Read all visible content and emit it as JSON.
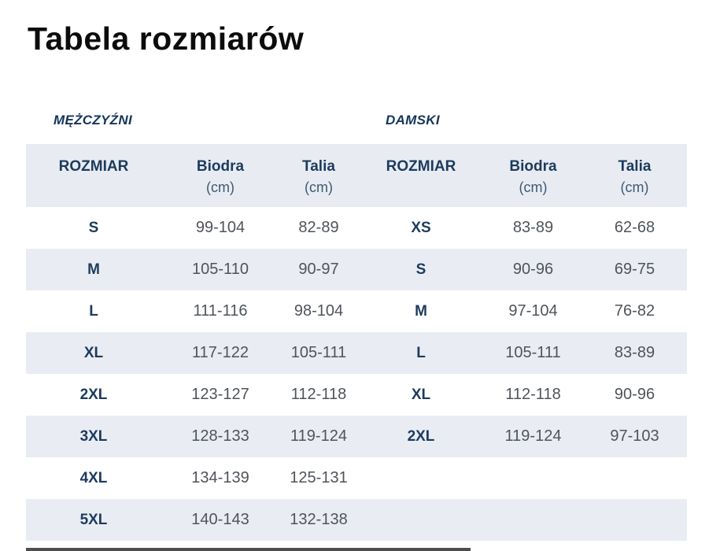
{
  "title": "Tabela rozmiarów",
  "men": {
    "section_label": "MĘŻCZYŹNI",
    "headers": {
      "size": "ROZMIAR",
      "hips": "Biodra",
      "waist": "Talia",
      "unit": "(cm)"
    },
    "rows": [
      {
        "size": "S",
        "hips": "99-104",
        "waist": "82-89"
      },
      {
        "size": "M",
        "hips": "105-110",
        "waist": "90-97"
      },
      {
        "size": "L",
        "hips": "111-116",
        "waist": "98-104"
      },
      {
        "size": "XL",
        "hips": "117-122",
        "waist": "105-111"
      },
      {
        "size": "2XL",
        "hips": "123-127",
        "waist": "112-118"
      },
      {
        "size": "3XL",
        "hips": "128-133",
        "waist": "119-124"
      },
      {
        "size": "4XL",
        "hips": "134-139",
        "waist": "125-131"
      },
      {
        "size": "5XL",
        "hips": "140-143",
        "waist": "132-138"
      }
    ]
  },
  "women": {
    "section_label": "DAMSKI",
    "headers": {
      "size": "ROZMIAR",
      "hips": "Biodra",
      "waist": "Talia",
      "unit": "(cm)"
    },
    "rows": [
      {
        "size": "XS",
        "hips": "83-89",
        "waist": "62-68"
      },
      {
        "size": "S",
        "hips": "90-96",
        "waist": "69-75"
      },
      {
        "size": "M",
        "hips": "97-104",
        "waist": "76-82"
      },
      {
        "size": "L",
        "hips": "105-111",
        "waist": "83-89"
      },
      {
        "size": "XL",
        "hips": "112-118",
        "waist": "90-96"
      },
      {
        "size": "2XL",
        "hips": "119-124",
        "waist": "97-103"
      }
    ]
  },
  "colors": {
    "navy": "#1c3b5e",
    "stripe": "#e9edf3",
    "header_bg": "#e8ecf2",
    "range_text": "#4f545a",
    "title_text": "#0c0c0d"
  }
}
